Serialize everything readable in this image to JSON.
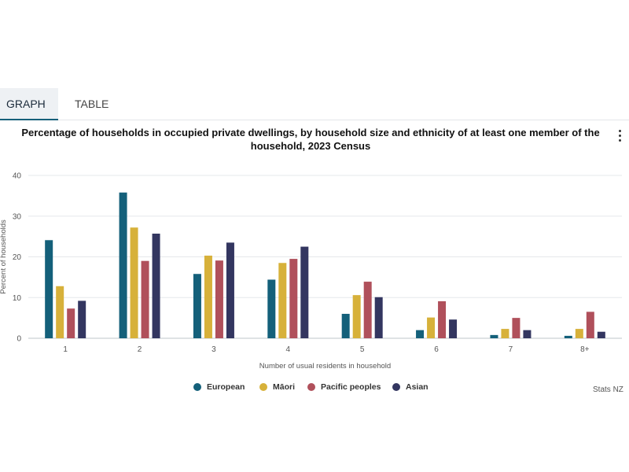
{
  "tabs": [
    {
      "label": "GRAPH",
      "active": true
    },
    {
      "label": "TABLE",
      "active": false
    }
  ],
  "menu_icon": "more-vertical-icon",
  "credit": "Stats NZ",
  "chart_data": {
    "type": "bar",
    "title": "Percentage of households in occupied private dwellings, by household size and ethnicity of at least one member of the household, 2023 Census",
    "xlabel": "Number of usual residents in household",
    "ylabel": "Percent of households",
    "ylim": [
      0,
      40
    ],
    "yticks": [
      "0",
      "10",
      "20",
      "30",
      "40"
    ],
    "grid": true,
    "legend_position": "bottom",
    "categories": [
      "1",
      "2",
      "3",
      "4",
      "5",
      "6",
      "7",
      "8+"
    ],
    "series": [
      {
        "name": "European",
        "color": "#14607a",
        "values": [
          24.1,
          35.8,
          15.8,
          14.4,
          6.0,
          2.0,
          0.8,
          0.6
        ]
      },
      {
        "name": "Māori",
        "color": "#d7b13a",
        "values": [
          12.8,
          27.2,
          20.3,
          18.5,
          10.6,
          5.1,
          2.3,
          2.3
        ]
      },
      {
        "name": "Pacific peoples",
        "color": "#b0505b",
        "values": [
          7.3,
          19.0,
          19.1,
          19.5,
          13.9,
          9.1,
          5.0,
          6.5
        ]
      },
      {
        "name": "Asian",
        "color": "#333660",
        "values": [
          9.2,
          25.7,
          23.5,
          22.5,
          10.1,
          4.6,
          2.0,
          1.6
        ]
      }
    ]
  }
}
